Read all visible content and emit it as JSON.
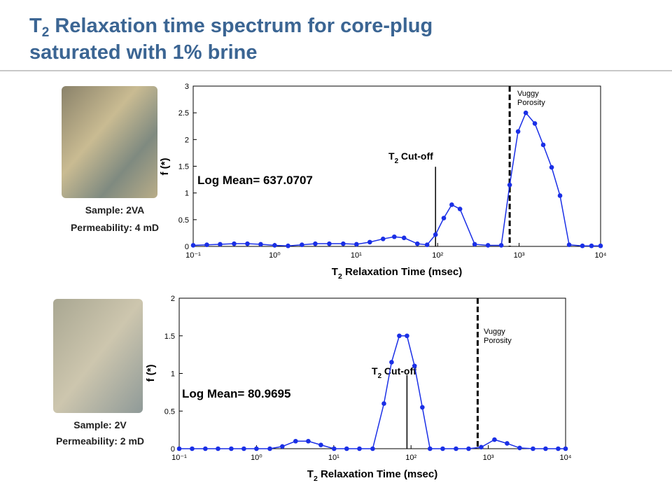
{
  "title": {
    "main": "T",
    "sub": "2",
    "line1": " Relaxation time spectrum for core-plug",
    "line2": "saturated with 1% brine"
  },
  "samples": [
    {
      "sample": "Sample: 2VA",
      "permeability": "Permeability: 4 mD"
    },
    {
      "sample": "Sample: 2V",
      "permeability": "Permeability: 2 mD"
    }
  ],
  "chart_data": [
    {
      "type": "line",
      "xscale": "log",
      "color": "#1a2fe6",
      "ylabel": "f (*)",
      "xlabel": {
        "main": "T",
        "sub": "2",
        "rest": " Relaxation Time (msec)"
      },
      "x": [
        0.1,
        0.147,
        0.214,
        0.318,
        0.463,
        0.674,
        1,
        1.46,
        2.16,
        3.15,
        4.68,
        6.94,
        10.1,
        14.7,
        21.4,
        29.4,
        38.7,
        56.4,
        74.3,
        94.2,
        119,
        149,
        188,
        285,
        415,
        604,
        766,
        971,
        1208,
        1560,
        1977,
        2507,
        3177,
        4111,
        5984,
        7730,
        10000
      ],
      "values": [
        0.02,
        0.03,
        0.04,
        0.05,
        0.05,
        0.04,
        0.02,
        0.01,
        0.03,
        0.05,
        0.05,
        0.05,
        0.04,
        0.08,
        0.14,
        0.18,
        0.16,
        0.05,
        0.03,
        0.22,
        0.53,
        0.78,
        0.7,
        0.04,
        0.02,
        0.02,
        1.15,
        2.15,
        2.5,
        2.3,
        1.9,
        1.48,
        0.95,
        0.03,
        0.01,
        0.01,
        0.01
      ],
      "xlim": [
        0.1,
        10000
      ],
      "xticks": [
        {
          "value": 0.1,
          "label": "10⁻¹"
        },
        {
          "value": 1,
          "label": "10⁰"
        },
        {
          "value": 10,
          "label": "10¹"
        },
        {
          "value": 100,
          "label": "10²"
        },
        {
          "value": 1000,
          "label": "10³"
        },
        {
          "value": 10000,
          "label": "10⁴"
        }
      ],
      "ylim": [
        0,
        3
      ],
      "yticks": [
        0,
        0.5,
        1,
        1.5,
        2,
        2.5,
        3
      ],
      "log_mean": "Log Mean= 637.0707",
      "cutoff": {
        "x": 94.2,
        "top": 1.49,
        "main": "T",
        "sub": "2",
        "rest": " Cut-off"
      },
      "vuggy": {
        "x": 766,
        "lines": [
          "Vuggy",
          "Porosity"
        ]
      }
    },
    {
      "type": "line",
      "xscale": "log",
      "color": "#1a2fe6",
      "ylabel": "f (*)",
      "xlabel": {
        "main": "T",
        "sub": "2",
        "rest": " Relaxation Time (msec)"
      },
      "x": [
        0.1,
        0.147,
        0.218,
        0.318,
        0.472,
        0.687,
        1,
        1.49,
        2.16,
        3.21,
        4.68,
        6.81,
        10.1,
        14.7,
        21.5,
        31.9,
        44.6,
        56.0,
        70.5,
        88.6,
        111,
        140,
        176,
        257,
        382,
        556,
        809,
        1202,
        1750,
        2546,
        3785,
        5510,
        8017,
        10000
      ],
      "values": [
        0,
        0,
        0,
        0,
        0,
        0,
        0,
        0,
        0.03,
        0.1,
        0.1,
        0.05,
        0,
        0,
        0,
        0,
        0.6,
        1.15,
        1.5,
        1.5,
        1.1,
        0.55,
        0,
        0,
        0,
        0,
        0.02,
        0.12,
        0.07,
        0.01,
        0,
        0,
        0,
        0
      ],
      "xlim": [
        0.1,
        10000
      ],
      "xticks": [
        {
          "value": 0.1,
          "label": "10⁻¹"
        },
        {
          "value": 1,
          "label": "10⁰"
        },
        {
          "value": 10,
          "label": "10¹"
        },
        {
          "value": 100,
          "label": "10²"
        },
        {
          "value": 1000,
          "label": "10³"
        },
        {
          "value": 10000,
          "label": "10⁴"
        }
      ],
      "ylim": [
        0,
        2
      ],
      "yticks": [
        0,
        0.5,
        1,
        1.5,
        2
      ],
      "log_mean": "Log Mean= 80.9695",
      "cutoff": {
        "x": 88.6,
        "top": 0.98,
        "main": "T",
        "sub": "2",
        "rest": " Cut-off"
      },
      "vuggy": {
        "x": 728,
        "lines": [
          "Vuggy",
          "Porosity"
        ]
      }
    }
  ]
}
